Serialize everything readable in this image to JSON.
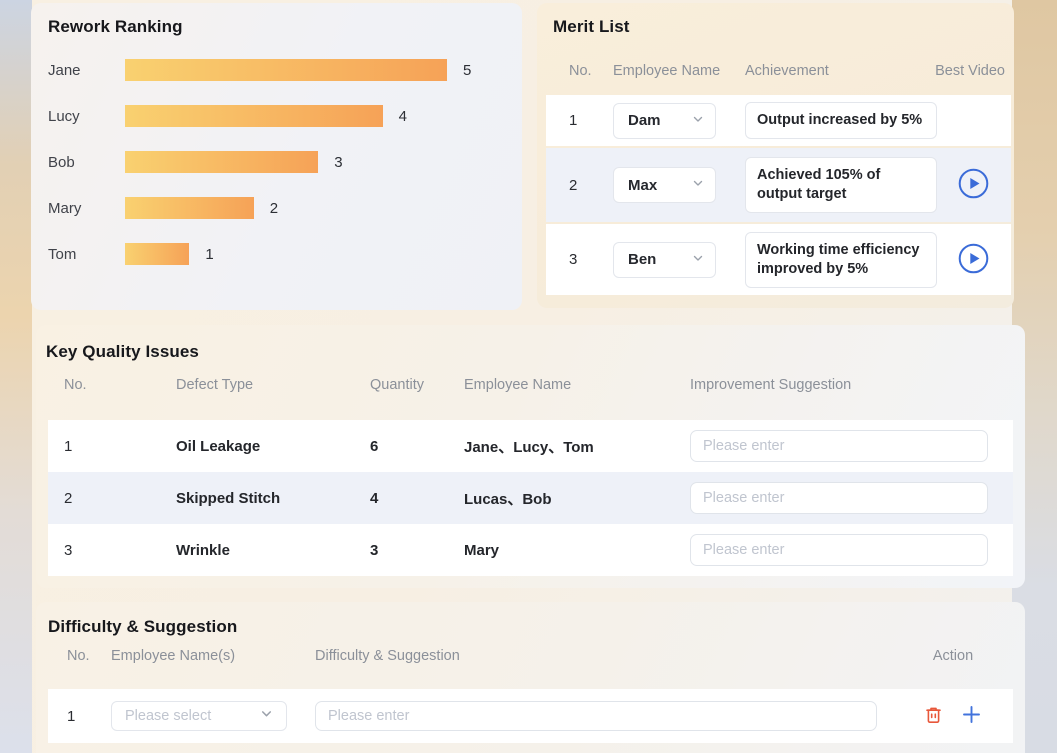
{
  "rework": {
    "title": "Rework Ranking"
  },
  "chart_data": {
    "type": "bar",
    "orientation": "horizontal",
    "title": "Rework Ranking",
    "categories": [
      "Jane",
      "Lucy",
      "Bob",
      "Mary",
      "Tom"
    ],
    "values": [
      5,
      4,
      3,
      2,
      1
    ],
    "xlabel": "",
    "ylabel": "",
    "xlim": [
      0,
      5
    ],
    "grid": false,
    "value_labels_shown": true,
    "bar_color_start": "#f9d170",
    "bar_color_end": "#f6a257"
  },
  "merit": {
    "title": "Merit List",
    "columns": [
      "No.",
      "Employee Name",
      "Achievement",
      "Best Video"
    ],
    "rows": [
      {
        "no": "1",
        "employee": "Dam",
        "achievement": "Output increased by 5%"
      },
      {
        "no": "2",
        "employee": "Max",
        "achievement": "Achieved 105% of output target"
      },
      {
        "no": "3",
        "employee": "Ben",
        "achievement": "Working time efficiency improved by 5%"
      }
    ]
  },
  "quality": {
    "title": "Key Quality Issues",
    "columns": [
      "No.",
      "Defect Type",
      "Quantity",
      "Employee Name",
      "Improvement Suggestion"
    ],
    "rows": [
      {
        "no": "1",
        "defect": "Oil Leakage",
        "quantity": "6",
        "employees": "Jane、Lucy、Tom",
        "suggestion_placeholder": "Please enter"
      },
      {
        "no": "2",
        "defect": "Skipped Stitch",
        "quantity": "4",
        "employees": "Lucas、Bob",
        "suggestion_placeholder": "Please enter"
      },
      {
        "no": "3",
        "defect": "Wrinkle",
        "quantity": "3",
        "employees": "Mary",
        "suggestion_placeholder": "Please enter"
      }
    ]
  },
  "difficulty": {
    "title": "Difficulty & Suggestion",
    "columns": [
      "No.",
      "Employee Name(s)",
      "Difficulty & Suggestion",
      "Action"
    ],
    "rows": [
      {
        "no": "1",
        "employee_placeholder": "Please select",
        "suggestion_placeholder": "Please enter"
      }
    ]
  },
  "icons": {
    "chevron_down": "v-chevron",
    "play": "play-triangle-in-circle",
    "trash": "trash-can",
    "plus": "+"
  },
  "colors": {
    "play_blue": "#3a6bd8",
    "plus_blue": "#4273dc",
    "trash_red": "#e8573a",
    "row_stripe": "#eef1f8",
    "bar_gradient_start": "#f9d170",
    "bar_gradient_end": "#f6a257"
  }
}
